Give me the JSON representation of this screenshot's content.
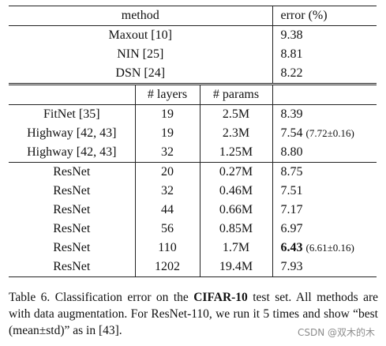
{
  "table": {
    "headers": {
      "method": "method",
      "error": "error (%)",
      "layers": "# layers",
      "params": "# params"
    },
    "group1": [
      {
        "method": "Maxout [10]",
        "error": "9.38"
      },
      {
        "method": "NIN [25]",
        "error": "8.81"
      },
      {
        "method": "DSN [24]",
        "error": "8.22"
      }
    ],
    "group2": [
      {
        "method": "FitNet [35]",
        "layers": "19",
        "params": "2.5M",
        "error": "8.39",
        "error_extra": ""
      },
      {
        "method": "Highway [42, 43]",
        "layers": "19",
        "params": "2.3M",
        "error": "7.54",
        "error_extra": "(7.72±0.16)"
      },
      {
        "method": "Highway [42, 43]",
        "layers": "32",
        "params": "1.25M",
        "error": "8.80",
        "error_extra": ""
      }
    ],
    "group3": [
      {
        "method": "ResNet",
        "layers": "20",
        "params": "0.27M",
        "error": "8.75",
        "error_extra": ""
      },
      {
        "method": "ResNet",
        "layers": "32",
        "params": "0.46M",
        "error": "7.51",
        "error_extra": ""
      },
      {
        "method": "ResNet",
        "layers": "44",
        "params": "0.66M",
        "error": "7.17",
        "error_extra": ""
      },
      {
        "method": "ResNet",
        "layers": "56",
        "params": "0.85M",
        "error": "6.97",
        "error_extra": ""
      },
      {
        "method": "ResNet",
        "layers": "110",
        "params": "1.7M",
        "error": "6.43",
        "error_extra": "(6.61±0.16)"
      },
      {
        "method": "ResNet",
        "layers": "1202",
        "params": "19.4M",
        "error": "7.93",
        "error_extra": ""
      }
    ]
  },
  "caption": {
    "prefix": "Table 6. Classification error on the ",
    "dataset": "CIFAR-10",
    "rest": " test set. All methods are with data augmentation. For ResNet-110, we run it 5 times and show “best (mean±std)” as in [43]."
  },
  "watermark": "CSDN @双木的木"
}
